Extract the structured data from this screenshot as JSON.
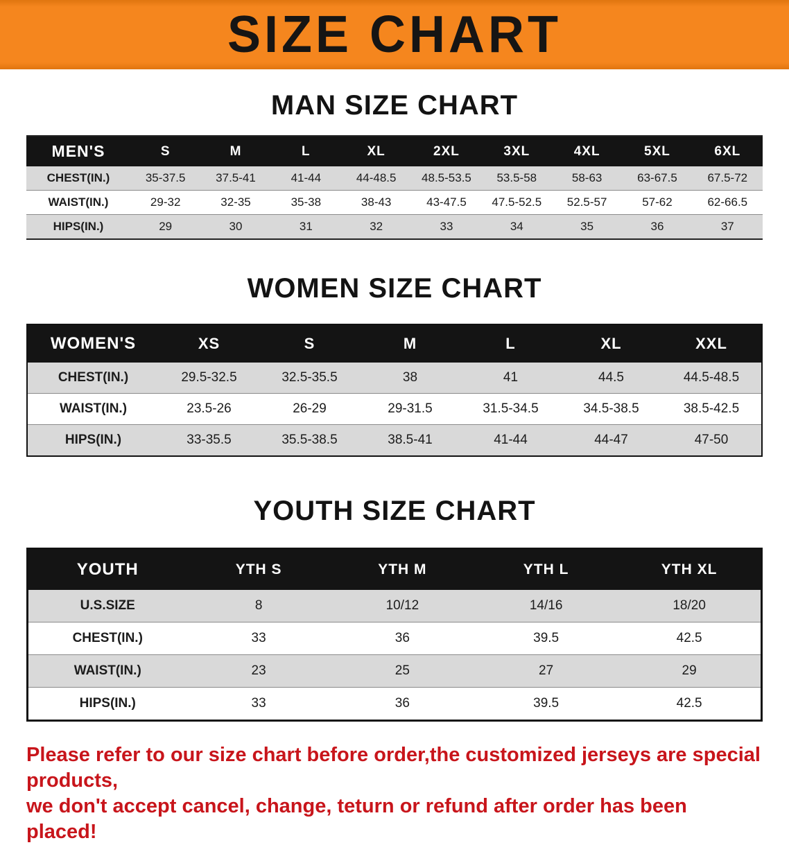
{
  "banner": {
    "title": "SIZE CHART"
  },
  "colors": {
    "banner_bg": "#f5861e",
    "banner_edge": "#e0750f",
    "header_bg": "#141414",
    "row_alt": "#d9d9d9",
    "accent_red": "#c8151b"
  },
  "sections": {
    "men": {
      "heading": "MAN SIZE CHART",
      "table": {
        "header": [
          "MEN'S",
          "S",
          "M",
          "L",
          "XL",
          "2XL",
          "3XL",
          "4XL",
          "5XL",
          "6XL"
        ],
        "rows": [
          [
            "CHEST(IN.)",
            "35-37.5",
            "37.5-41",
            "41-44",
            "44-48.5",
            "48.5-53.5",
            "53.5-58",
            "58-63",
            "63-67.5",
            "67.5-72"
          ],
          [
            "WAIST(IN.)",
            "29-32",
            "32-35",
            "35-38",
            "38-43",
            "43-47.5",
            "47.5-52.5",
            "52.5-57",
            "57-62",
            "62-66.5"
          ],
          [
            "HIPS(IN.)",
            "29",
            "30",
            "31",
            "32",
            "33",
            "34",
            "35",
            "36",
            "37"
          ]
        ]
      }
    },
    "women": {
      "heading": "WOMEN SIZE CHART",
      "table": {
        "header": [
          "WOMEN'S",
          "XS",
          "S",
          "M",
          "L",
          "XL",
          "XXL"
        ],
        "rows": [
          [
            "CHEST(IN.)",
            "29.5-32.5",
            "32.5-35.5",
            "38",
            "41",
            "44.5",
            "44.5-48.5"
          ],
          [
            "WAIST(IN.)",
            "23.5-26",
            "26-29",
            "29-31.5",
            "31.5-34.5",
            "34.5-38.5",
            "38.5-42.5"
          ],
          [
            "HIPS(IN.)",
            "33-35.5",
            "35.5-38.5",
            "38.5-41",
            "41-44",
            "44-47",
            "47-50"
          ]
        ]
      }
    },
    "youth": {
      "heading": "YOUTH SIZE CHART",
      "table": {
        "header": [
          "YOUTH",
          "YTH S",
          "YTH M",
          "YTH L",
          "YTH XL"
        ],
        "rows": [
          [
            "U.S.SIZE",
            "8",
            "10/12",
            "14/16",
            "18/20"
          ],
          [
            "CHEST(IN.)",
            "33",
            "36",
            "39.5",
            "42.5"
          ],
          [
            "WAIST(IN.)",
            "23",
            "25",
            "27",
            "29"
          ],
          [
            "HIPS(IN.)",
            "33",
            "36",
            "39.5",
            "42.5"
          ]
        ]
      }
    }
  },
  "footer": {
    "line1": "Please refer to our size chart before order,the customized jerseys are special products,",
    "line2": "we don't accept cancel, change, teturn or refund after order has been placed!"
  }
}
